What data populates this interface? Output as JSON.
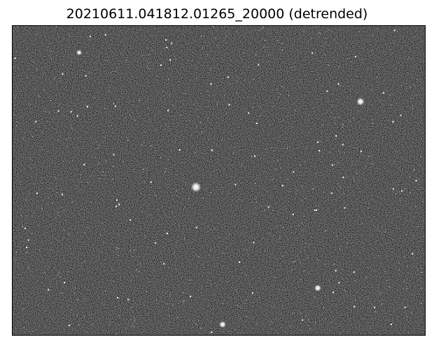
{
  "figure": {
    "title": "20210611.041812.01265_20000 (detrended)"
  },
  "image": {
    "kind": "grayscale-starfield",
    "colormap": "gray",
    "background_color": "#1b1b1b",
    "star_color": "#ffffff",
    "bright_star_count": 5
  }
}
